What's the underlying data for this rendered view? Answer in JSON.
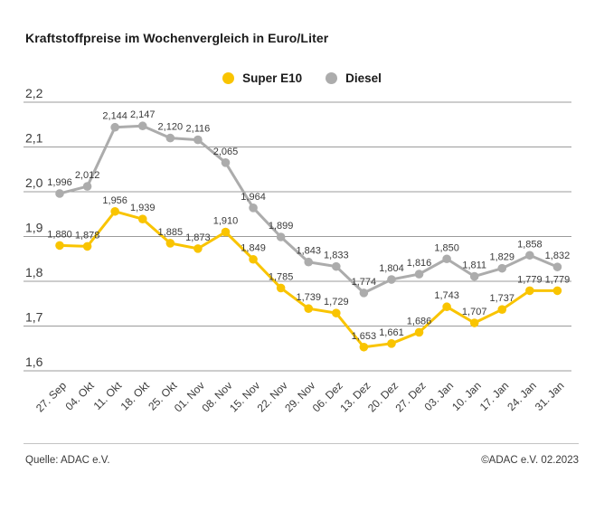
{
  "header": {
    "title": "Kraftstoffpreise im Wochenvergleich in Euro/Liter"
  },
  "footer": {
    "source": "Quelle: ADAC e.V.",
    "copyright": "©ADAC e.V. 02.2023"
  },
  "colors": {
    "super_e10": "#f9c400",
    "diesel": "#acacac",
    "gridline": "#9b9b9b",
    "label_text": "#3a3a3a"
  },
  "chart_data": {
    "type": "line",
    "title": "Kraftstoffpreise im Wochenvergleich in Euro/Liter",
    "xlabel": "",
    "ylabel": "Euro/Liter",
    "ylim": [
      1.6,
      2.2
    ],
    "grid": true,
    "legend_position": "top-center",
    "point_labels": true,
    "categories": [
      "27. Sep",
      "04. Okt",
      "11. Okt",
      "18. Okt",
      "25. Okt",
      "01. Nov",
      "08. Nov",
      "15. Nov",
      "22. Nov",
      "29. Nov",
      "06. Dez",
      "13. Dez",
      "20. Dez",
      "27. Dez",
      "03. Jan",
      "10. Jan",
      "17. Jan",
      "24. Jan",
      "31. Jan"
    ],
    "yticks": [
      {
        "value": 2.2,
        "label": "2,2"
      },
      {
        "value": 2.1,
        "label": "2,1"
      },
      {
        "value": 2.0,
        "label": "2,0"
      },
      {
        "value": 1.9,
        "label": "1,9"
      },
      {
        "value": 1.8,
        "label": "1,8"
      },
      {
        "value": 1.7,
        "label": "1,7"
      },
      {
        "value": 1.6,
        "label": "1,6"
      }
    ],
    "series": [
      {
        "name": "Super E10",
        "color": "#f9c400",
        "values": [
          1.88,
          1.878,
          1.956,
          1.939,
          1.885,
          1.873,
          1.91,
          1.849,
          1.785,
          1.739,
          1.729,
          1.653,
          1.661,
          1.686,
          1.743,
          1.707,
          1.737,
          1.779,
          1.779
        ],
        "labels": [
          "1,880",
          "1,878",
          "1,956",
          "1,939",
          "1,885",
          "1,873",
          "1,910",
          "1,849",
          "1,785",
          "1,739",
          "1,729",
          "1,653",
          "1,661",
          "1,686",
          "1,743",
          "1,707",
          "1,737",
          "1,779",
          "1,779"
        ]
      },
      {
        "name": "Diesel",
        "color": "#acacac",
        "values": [
          1.996,
          2.012,
          2.144,
          2.147,
          2.12,
          2.116,
          2.065,
          1.964,
          1.899,
          1.843,
          1.833,
          1.774,
          1.804,
          1.816,
          1.85,
          1.811,
          1.829,
          1.858,
          1.832
        ],
        "labels": [
          "1,996",
          "2,012",
          "2,144",
          "2,147",
          "2,120",
          "2,116",
          "2,065",
          "1,964",
          "1,899",
          "1,843",
          "1,833",
          "1,774",
          "1,804",
          "1,816",
          "1,850",
          "1,811",
          "1,829",
          "1,858",
          "1,832"
        ]
      }
    ]
  }
}
